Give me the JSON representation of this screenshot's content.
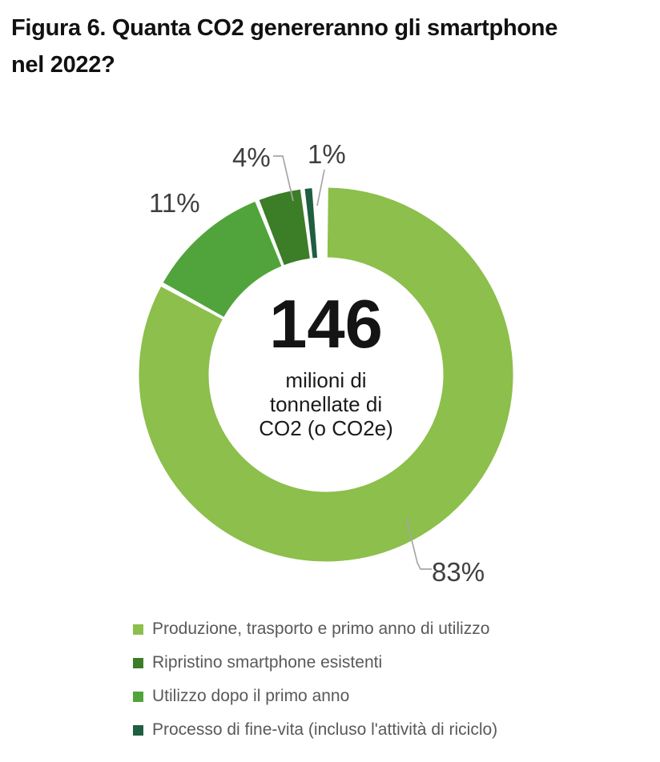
{
  "figure": {
    "title_line1": "Figura 6. Quanta CO2 genereranno gli smartphone",
    "title_line2": "nel 2022?"
  },
  "donut": {
    "center_value": "146",
    "center_unit_line1": "milioni di",
    "center_unit_line2": "tonnellate di",
    "center_unit_line3": "CO2 (o CO2e)"
  },
  "chart_data": {
    "type": "pie",
    "subtype": "donut",
    "title": "Figura 6. Quanta CO2 genereranno gli smartphone nel 2022?",
    "center_label": {
      "value": 146,
      "unit": "milioni di tonnellate di CO2 (o CO2e)"
    },
    "start_angle_deg": 0,
    "direction": "clockwise",
    "legend_position": "bottom",
    "slices": [
      {
        "label": "Produzione, trasporto e primo anno di utilizzo",
        "percent": 83,
        "pct_label": "83%",
        "color": "#8CBF4B"
      },
      {
        "label": "Utilizzo dopo il primo anno",
        "percent": 11,
        "pct_label": "11%",
        "color": "#51A43B"
      },
      {
        "label": "Ripristino smartphone esistenti",
        "percent": 4,
        "pct_label": "4%",
        "color": "#3C7D28"
      },
      {
        "label": "Processo di fine-vita (incluso l'attività di riciclo)",
        "percent": 1,
        "pct_label": "1%",
        "color": "#1F5E40"
      }
    ]
  },
  "legend": {
    "items": [
      {
        "label": "Produzione, trasporto e primo anno di utilizzo",
        "color": "#8CBF4B"
      },
      {
        "label": "Ripristino smartphone esistenti",
        "color": "#3C7D28"
      },
      {
        "label": "Utilizzo dopo il primo anno",
        "color": "#51A43B"
      },
      {
        "label": "Processo di fine-vita (incluso l'attività di riciclo)",
        "color": "#1F5E40"
      }
    ]
  },
  "colors": {
    "leader_line": "#A6A6A6",
    "pct_label_text": "#3F3F3F",
    "legend_text": "#595959",
    "title_text": "#111111"
  }
}
